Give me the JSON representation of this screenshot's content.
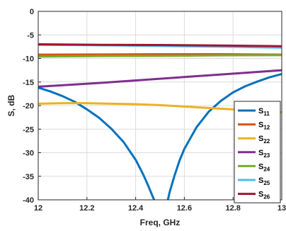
{
  "chart_data": {
    "type": "line",
    "xlabel": "Freq, GHz",
    "ylabel": "S, dB",
    "xlim": [
      12,
      13
    ],
    "ylim": [
      -40,
      0
    ],
    "xticks": [
      "12",
      "12.2",
      "12.4",
      "12.6",
      "12.8",
      "13"
    ],
    "yticks": [
      "0",
      "-5",
      "-10",
      "-15",
      "-20",
      "-25",
      "-30",
      "-35",
      "-40"
    ],
    "grid": true,
    "legend_position": "bottom-right",
    "series": [
      {
        "name": "S11",
        "label_main": "S",
        "label_sub": "11",
        "color": "#0072BD",
        "x": [
          12.0,
          12.05,
          12.1,
          12.15,
          12.2,
          12.25,
          12.3,
          12.35,
          12.4,
          12.43,
          12.45,
          12.47,
          12.48,
          null,
          12.53,
          12.54,
          12.56,
          12.58,
          12.6,
          12.65,
          12.7,
          12.75,
          12.8,
          12.85,
          12.9,
          12.95,
          13.0
        ],
        "y": [
          -16.2,
          -17.0,
          -18.0,
          -19.2,
          -20.8,
          -22.6,
          -24.9,
          -27.7,
          -31.5,
          -34.5,
          -36.8,
          -39.3,
          -40.5,
          null,
          -40.5,
          -38.3,
          -34.8,
          -31.7,
          -29.2,
          -24.6,
          -21.3,
          -19.0,
          -17.2,
          -15.9,
          -14.9,
          -14.0,
          -13.3
        ]
      },
      {
        "name": "S12",
        "label_main": "S",
        "label_sub": "12",
        "color": "#D95319",
        "x": [
          12.0,
          12.25,
          12.5,
          12.75,
          13.0
        ],
        "y": [
          -9.2,
          -9.15,
          -9.1,
          -9.1,
          -9.2
        ]
      },
      {
        "name": "S22",
        "label_main": "S",
        "label_sub": "22",
        "color": "#EDB120",
        "x": [
          12.0,
          12.1,
          12.2,
          12.3,
          12.4,
          12.5,
          12.6,
          12.7,
          12.8,
          12.9,
          13.0
        ],
        "y": [
          -19.6,
          -19.5,
          -19.5,
          -19.6,
          -19.7,
          -19.9,
          -20.2,
          -20.5,
          -20.8,
          -21.1,
          -21.4
        ]
      },
      {
        "name": "S23",
        "label_main": "S",
        "label_sub": "23",
        "color": "#7E2F8E",
        "x": [
          12.0,
          12.25,
          12.5,
          12.75,
          13.0
        ],
        "y": [
          -16.0,
          -15.2,
          -14.3,
          -13.4,
          -12.5
        ]
      },
      {
        "name": "S24",
        "label_main": "S",
        "label_sub": "24",
        "color": "#77AC30",
        "x": [
          12.0,
          12.25,
          12.5,
          12.75,
          13.0
        ],
        "y": [
          -9.6,
          -9.5,
          -9.45,
          -9.35,
          -9.3
        ]
      },
      {
        "name": "S25",
        "label_main": "S",
        "label_sub": "25",
        "color": "#4DBEEE",
        "x": [
          12.0,
          12.25,
          12.5,
          12.75,
          13.0
        ],
        "y": [
          -7.1,
          -7.2,
          -7.35,
          -7.5,
          -7.7
        ]
      },
      {
        "name": "S26",
        "label_main": "S",
        "label_sub": "26",
        "color": "#A2142F",
        "x": [
          12.0,
          12.25,
          12.5,
          12.75,
          13.0
        ],
        "y": [
          -7.0,
          -7.1,
          -7.15,
          -7.25,
          -7.4
        ]
      }
    ]
  }
}
